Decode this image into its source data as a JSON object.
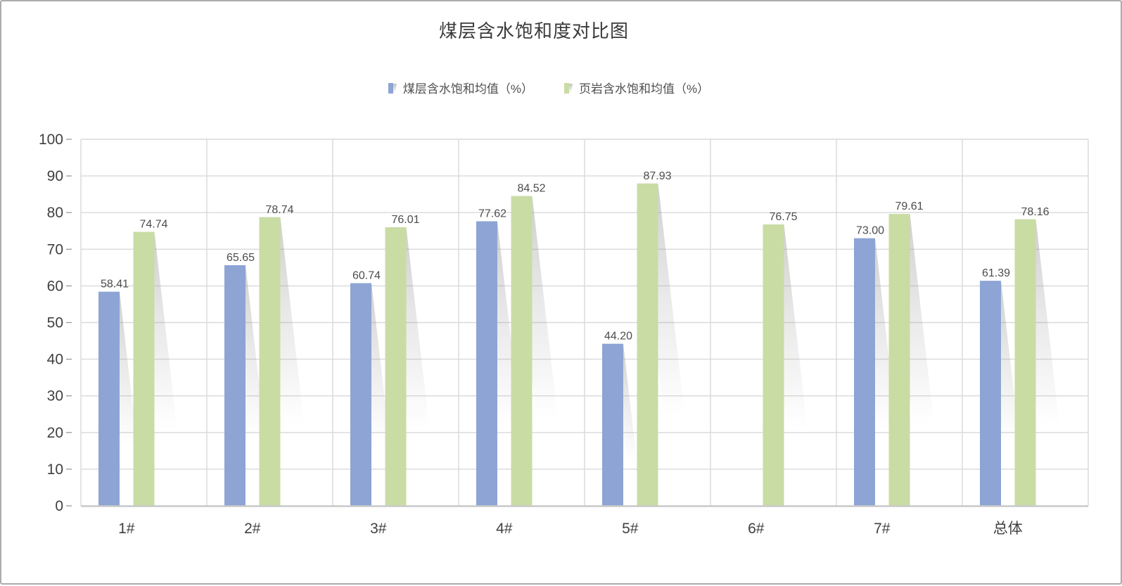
{
  "chart_data": {
    "type": "bar",
    "title": "煤层含水饱和度对比图",
    "categories": [
      "1#",
      "2#",
      "3#",
      "4#",
      "5#",
      "6#",
      "7#",
      "总体"
    ],
    "series": [
      {
        "name": "煤层含水饱和均值（%）",
        "color": "#8DA4D4",
        "values": [
          58.41,
          65.65,
          60.74,
          77.62,
          44.2,
          null,
          73.0,
          61.39
        ],
        "labels": [
          "58.41",
          "65.65",
          "60.74",
          "77.62",
          "44.20",
          null,
          "73.00",
          "61.39"
        ]
      },
      {
        "name": "页岩含水饱和均值（%）",
        "color": "#C9DCA3",
        "values": [
          74.74,
          78.74,
          76.01,
          84.52,
          87.93,
          76.75,
          79.61,
          78.16
        ],
        "labels": [
          "74.74",
          "78.74",
          "76.01",
          "84.52",
          "87.93",
          "76.75",
          "79.61",
          "78.16"
        ]
      }
    ],
    "ylim": [
      0,
      100
    ],
    "yticks": [
      0,
      10,
      20,
      30,
      40,
      50,
      60,
      70,
      80,
      90,
      100
    ],
    "grid": true,
    "legend_position": "top",
    "value_labels": true
  },
  "colors": {
    "background": "#FFFFFF",
    "frame_border": "#ABABAB",
    "grid": "#D9D9D9",
    "axis_line": "#C9C9C9",
    "tick": "#9A9A9A",
    "axis_text": "#404040",
    "value_label_text": "#4C4C4C",
    "title_text": "#3A3A3A",
    "legend_text": "#4F4F4F",
    "shadow": "#8C8C8C"
  }
}
